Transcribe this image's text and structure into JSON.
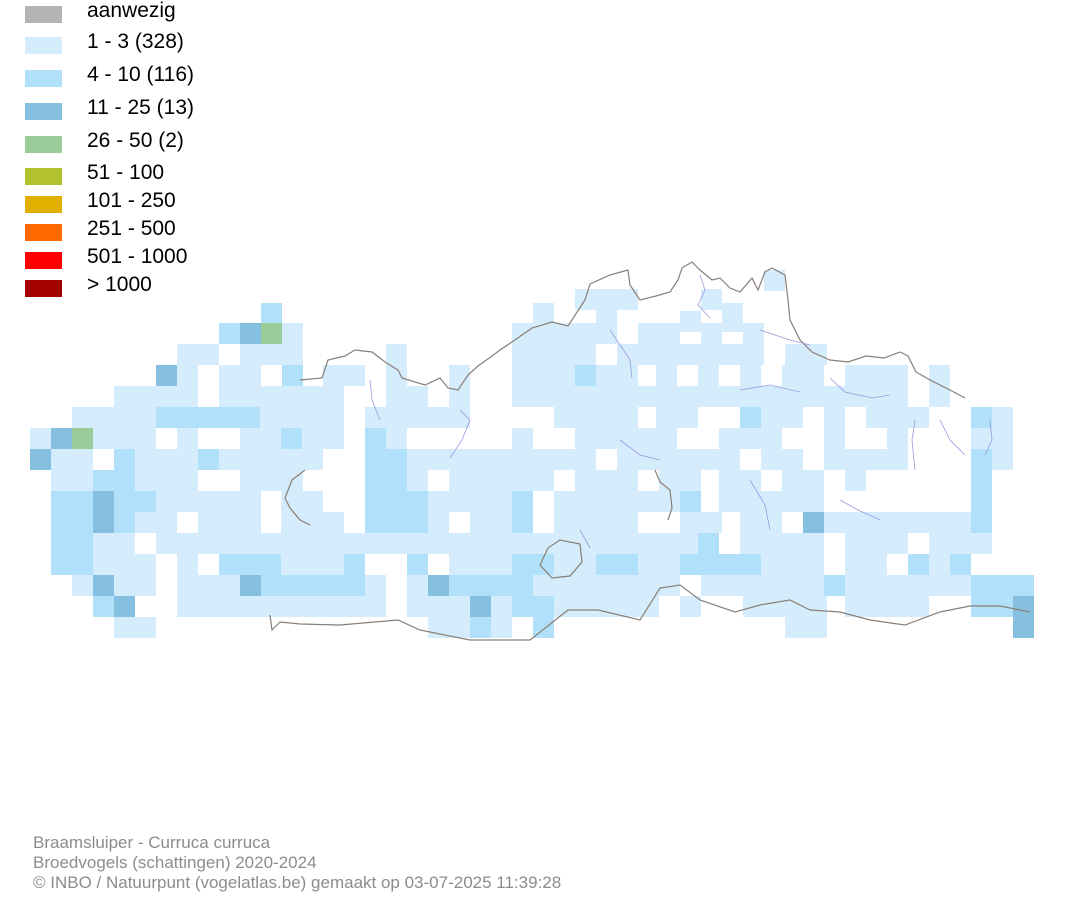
{
  "legend": {
    "items": [
      {
        "label": "aanwezig",
        "color": "#b3b3b3"
      },
      {
        "label": "1 - 3 (328)",
        "color": "#d4ecfb"
      },
      {
        "label": "4 - 10 (116)",
        "color": "#b0e0fa"
      },
      {
        "label": "11 - 25 (13)",
        "color": "#86c0e0"
      },
      {
        "label": "26 - 50 (2)",
        "color": "#99cc99"
      },
      {
        "label": "51 - 100",
        "color": "#b2c22f"
      },
      {
        "label": "101 - 250",
        "color": "#e0af00"
      },
      {
        "label": "251 - 500",
        "color": "#ff6a00"
      },
      {
        "label": "501 - 1000",
        "color": "#ff0000"
      },
      {
        "label": "> 1000",
        "color": "#a30000"
      }
    ]
  },
  "footer": {
    "line1": "Braamsluiper - Curruca curruca",
    "line2": "Broedvogels (schattingen) 2020-2024",
    "line3": "© INBO / Natuurpunt (vogelatlas.be) gemaakt op 03-07-2025 11:39:28"
  },
  "map": {
    "border_color": "#8a7f77",
    "river_color": "#9d97e0"
  }
}
